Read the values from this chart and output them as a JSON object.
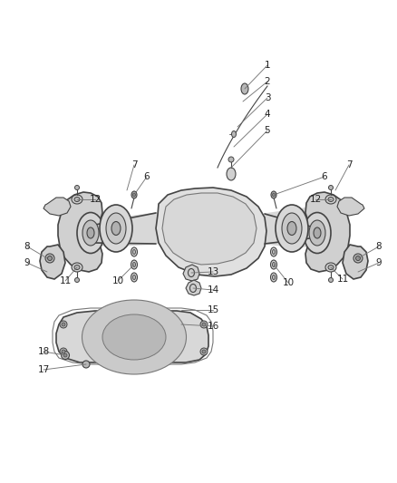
{
  "bg_color": "#ffffff",
  "line_color": "#777777",
  "dark_color": "#444444",
  "fill_light": "#e8e8e8",
  "fill_mid": "#d0d0d0",
  "fill_dark": "#b8b8b8",
  "text_color": "#222222",
  "fig_width": 4.38,
  "fig_height": 5.33,
  "dpi": 100
}
